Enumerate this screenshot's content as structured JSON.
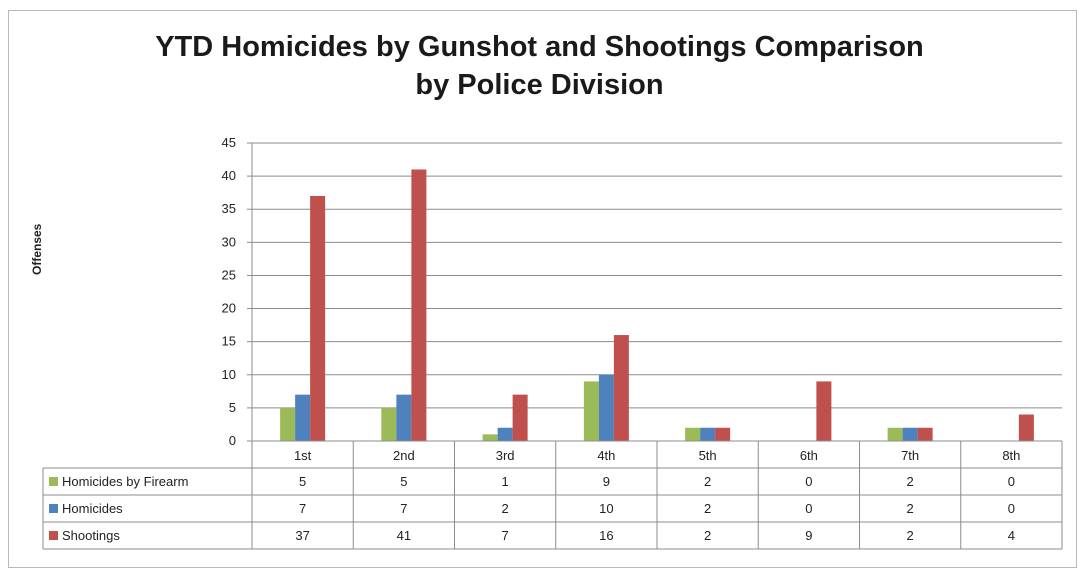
{
  "chart_data": {
    "type": "bar",
    "title_line1": "YTD Homicides by Gunshot and Shootings Comparison",
    "title_line2": "by Police Division",
    "ylabel": "Offenses",
    "ylim": [
      0,
      45
    ],
    "yticks": [
      0,
      5,
      10,
      15,
      20,
      25,
      30,
      35,
      40,
      45
    ],
    "categories": [
      "1st",
      "2nd",
      "3rd",
      "4th",
      "5th",
      "6th",
      "7th",
      "8th"
    ],
    "grid": true,
    "legend": "data-table-left",
    "series": [
      {
        "name": "Homicides by Firearm",
        "color": "#9bbb59",
        "values": [
          5,
          5,
          1,
          9,
          2,
          0,
          2,
          0
        ]
      },
      {
        "name": "Homicides",
        "color": "#4f81bd",
        "values": [
          7,
          7,
          2,
          10,
          2,
          0,
          2,
          0
        ]
      },
      {
        "name": "Shootings",
        "color": "#c0504d",
        "values": [
          37,
          41,
          7,
          16,
          2,
          9,
          2,
          4
        ]
      }
    ]
  }
}
